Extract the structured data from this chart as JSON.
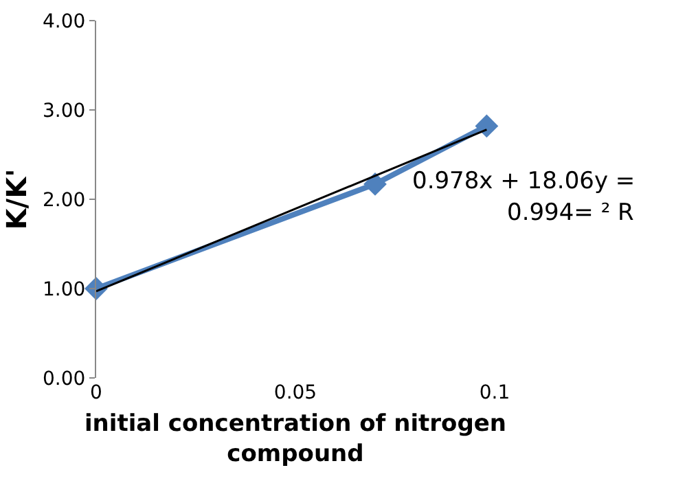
{
  "chart_data": {
    "type": "line",
    "xlabel": "initial concentration of nitrogen compound",
    "ylabel": "K/K'",
    "x": [
      0,
      0.07,
      0.098
    ],
    "series": [
      {
        "color": "#4f81bd",
        "values": [
          1.0,
          2.17,
          2.82
        ],
        "marker": "diamond"
      },
      {
        "type": "line",
        "color": "#000000",
        "x": [
          0,
          0.098
        ],
        "values": [
          0.97,
          2.78
        ],
        "marker": "none"
      }
    ],
    "xlim": [
      0,
      0.1
    ],
    "xticks": [
      0,
      0.05,
      0.1
    ],
    "ylim": [
      0,
      4
    ],
    "yticks": [
      {
        "value": 0,
        "label": "0.00"
      },
      {
        "value": 1,
        "label": "1.00"
      },
      {
        "value": 2,
        "label": "2.00"
      },
      {
        "value": 3,
        "label": "3.00"
      },
      {
        "value": 4,
        "label": "4.00"
      }
    ],
    "annotations": [
      "0.978x + 18.06y =",
      "0.994= ² R"
    ]
  }
}
